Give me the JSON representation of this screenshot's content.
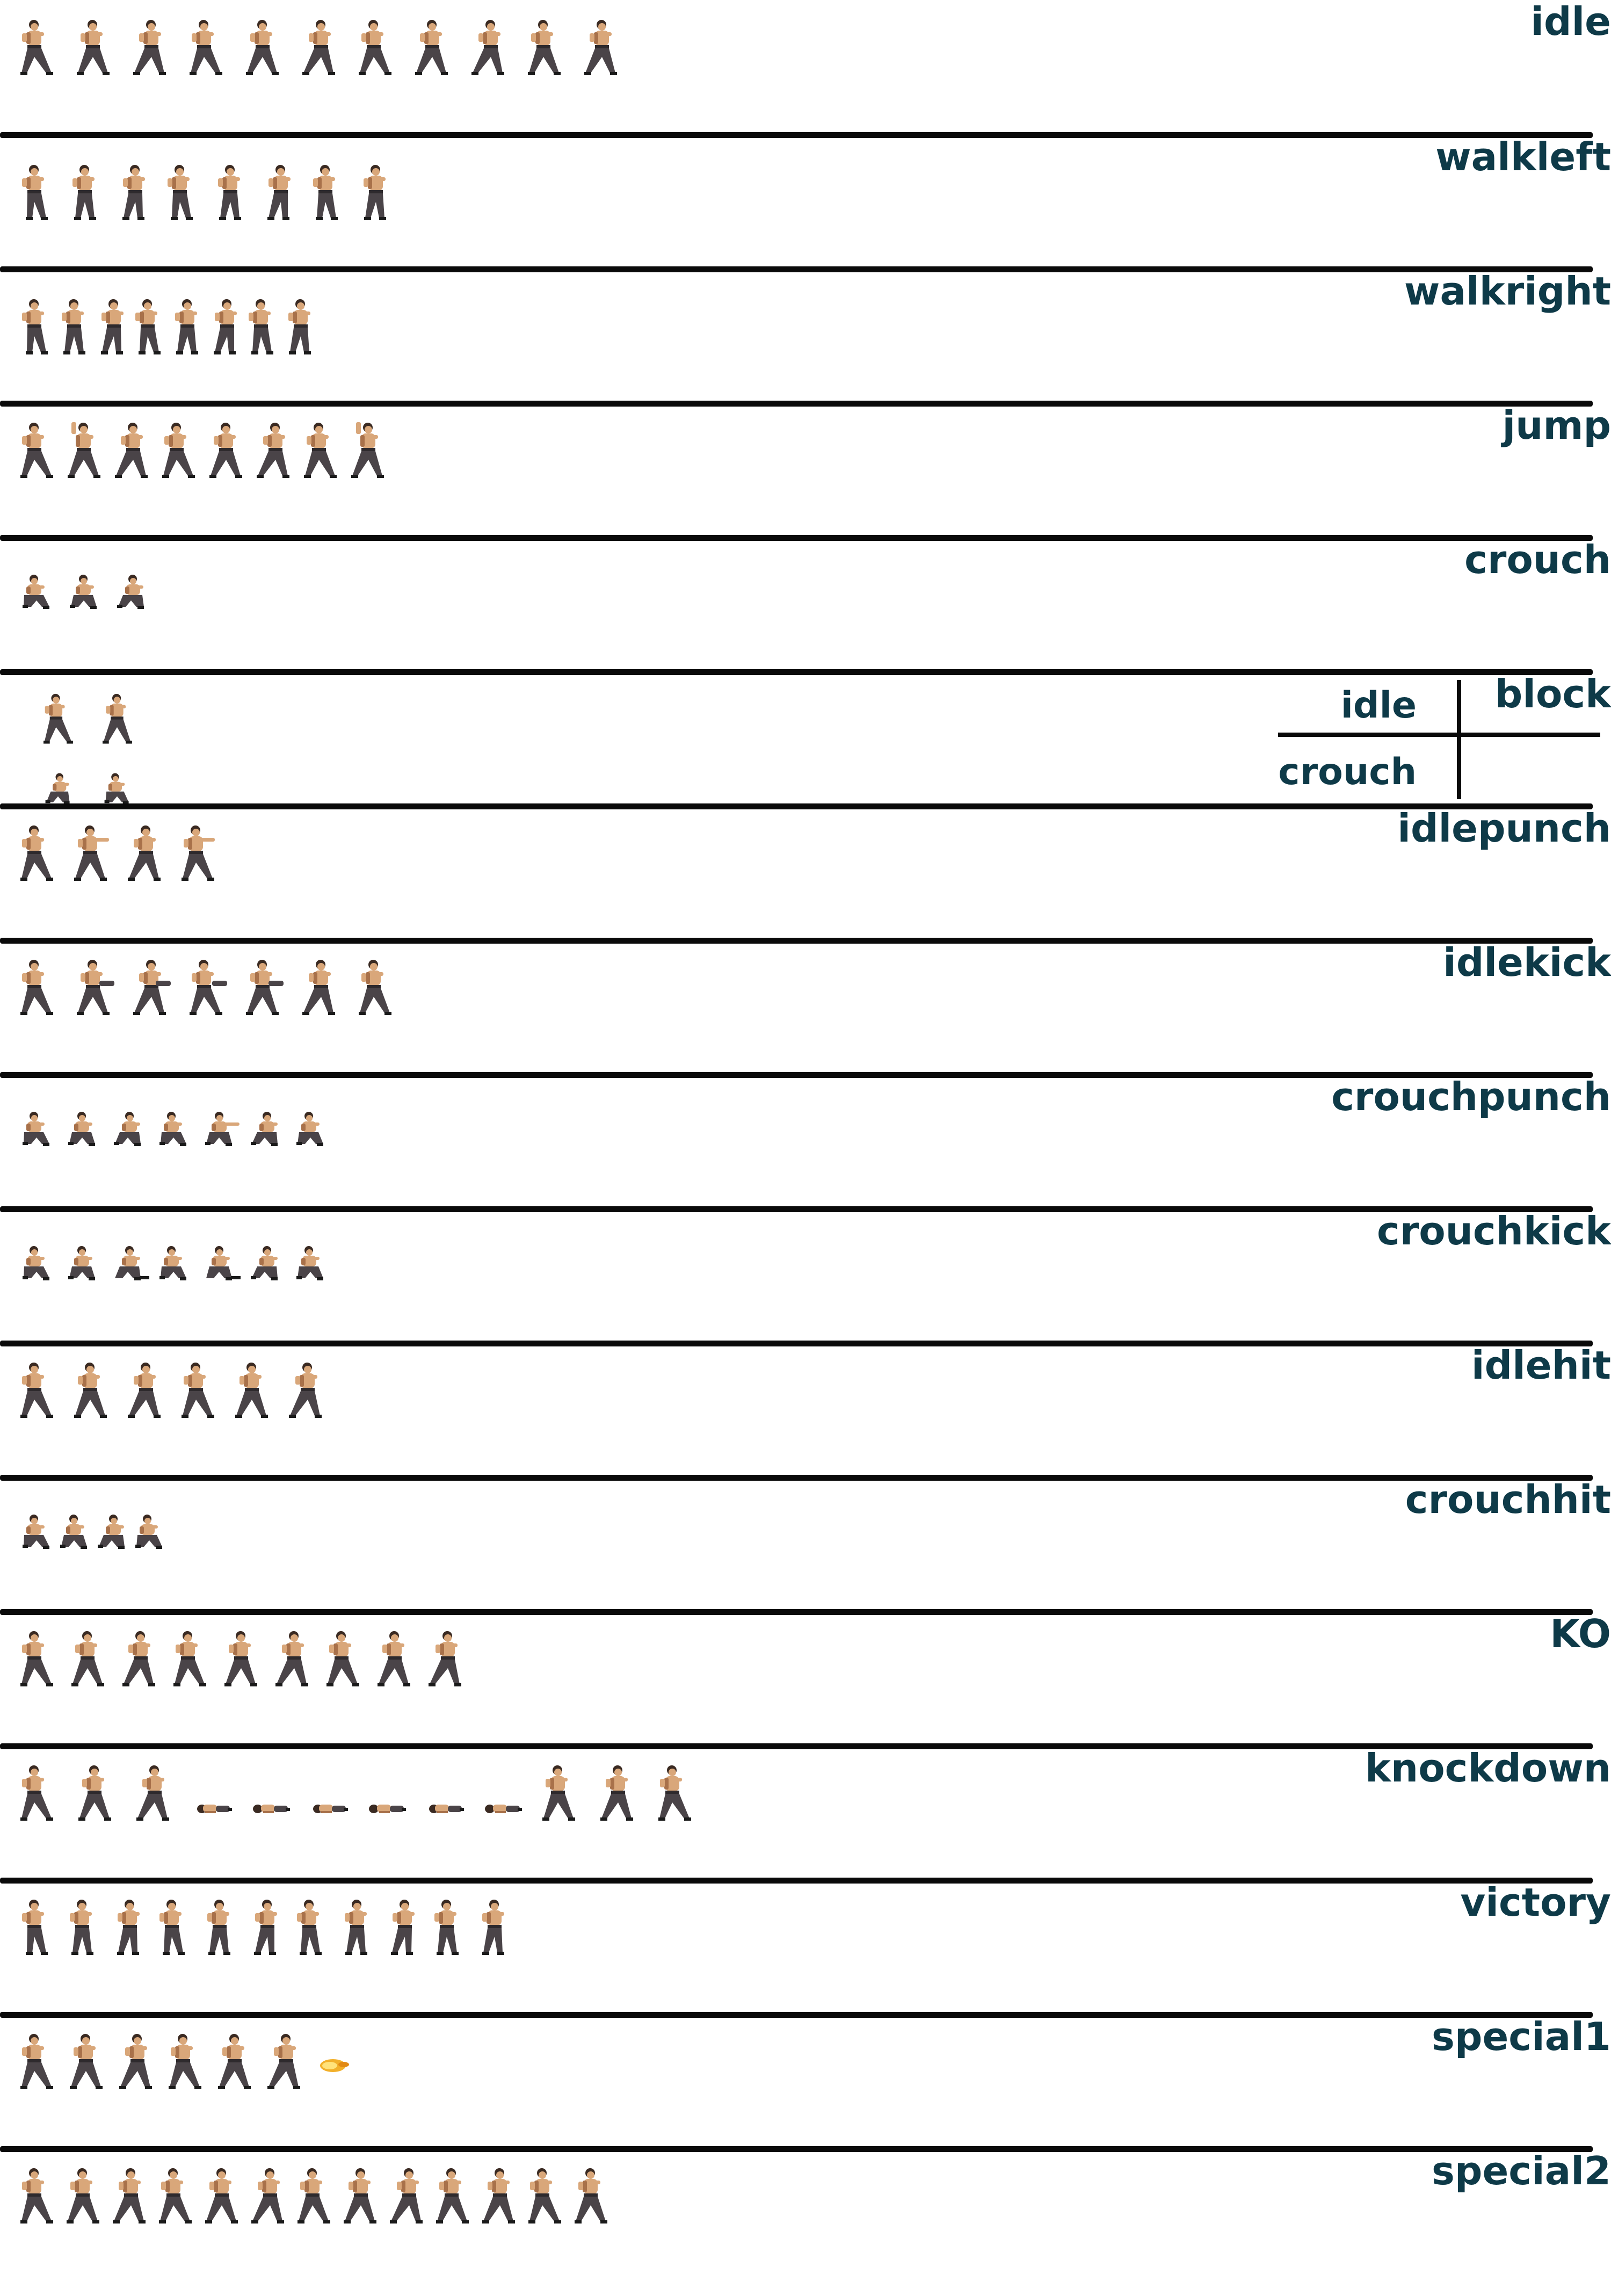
{
  "sheet": {
    "colors": {
      "background": "#ffffff",
      "divider": "#0a0a0a",
      "label": "#0e3a48",
      "skin": "#d9a77a",
      "skin_shadow": "#a8714a",
      "hair": "#3a2a22",
      "pants": "#4a4448",
      "pants_shadow": "#2e2a2d",
      "shoes": "#1a1a1a",
      "fireball": "#f2b02a"
    },
    "rows": [
      {
        "label": "idle",
        "frames": 11,
        "icon": "fighter-stance-icon"
      },
      {
        "label": "walkleft",
        "frames": 8,
        "icon": "fighter-walk-icon"
      },
      {
        "label": "walkright",
        "frames": 8,
        "icon": "fighter-walk-icon"
      },
      {
        "label": "jump",
        "frames": 8,
        "icon": "fighter-jump-icon"
      },
      {
        "label": "crouch",
        "frames": 3,
        "icon": "fighter-crouch-icon"
      },
      {
        "label": "block",
        "frames": 2,
        "icon": "fighter-block-icon",
        "sub": [
          {
            "label": "idle"
          },
          {
            "label": "crouch"
          }
        ]
      },
      {
        "label": "idlepunch",
        "frames": 4,
        "icon": "fighter-punch-icon"
      },
      {
        "label": "idlekick",
        "frames": 7,
        "icon": "fighter-kick-icon"
      },
      {
        "label": "crouchpunch",
        "frames": 7,
        "icon": "fighter-crouch-punch-icon"
      },
      {
        "label": "crouchkick",
        "frames": 7,
        "icon": "fighter-crouch-kick-icon"
      },
      {
        "label": "idlehit",
        "frames": 6,
        "icon": "fighter-hit-icon"
      },
      {
        "label": "crouchhit",
        "frames": 4,
        "icon": "fighter-crouch-hit-icon"
      },
      {
        "label": "KO",
        "frames": 9,
        "icon": "fighter-ko-icon"
      },
      {
        "label": "knockdown",
        "frames": 12,
        "icon": "fighter-knockdown-icon"
      },
      {
        "label": "victory",
        "frames": 11,
        "icon": "fighter-victory-icon"
      },
      {
        "label": "special1",
        "frames": 7,
        "icon": "fighter-special-icon"
      },
      {
        "label": "special2",
        "frames": 13,
        "icon": "fighter-special-icon"
      }
    ]
  }
}
